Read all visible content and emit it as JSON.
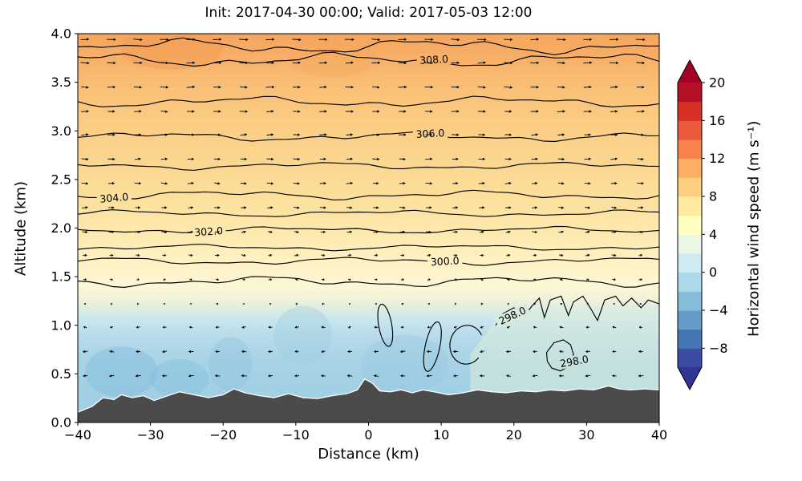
{
  "chart_data": {
    "type": "heatmap",
    "title": "Init: 2017-04-30 00:00; Valid: 2017-05-03 12:00",
    "xlabel": "Distance (km)",
    "ylabel": "Altitude (km)",
    "xlim": [
      -40,
      40
    ],
    "ylim": [
      0.0,
      4.0
    ],
    "x_ticks": [
      {
        "v": -40,
        "label": "−40"
      },
      {
        "v": -30,
        "label": "−30"
      },
      {
        "v": -20,
        "label": "−20"
      },
      {
        "v": -10,
        "label": "−10"
      },
      {
        "v": 0,
        "label": "0"
      },
      {
        "v": 10,
        "label": "10"
      },
      {
        "v": 20,
        "label": "20"
      },
      {
        "v": 30,
        "label": "30"
      },
      {
        "v": 40,
        "label": "40"
      }
    ],
    "y_ticks": [
      {
        "v": 0.0,
        "label": "0.0"
      },
      {
        "v": 0.5,
        "label": "0.5"
      },
      {
        "v": 1.0,
        "label": "1.0"
      },
      {
        "v": 1.5,
        "label": "1.5"
      },
      {
        "v": 2.0,
        "label": "2.0"
      },
      {
        "v": 2.5,
        "label": "2.5"
      },
      {
        "v": 3.0,
        "label": "3.0"
      },
      {
        "v": 3.5,
        "label": "3.5"
      },
      {
        "v": 4.0,
        "label": "4.0"
      }
    ],
    "colorbar": {
      "label": "Horizontal wind speed (m s⁻¹)",
      "vmin": -10,
      "vmax": 20,
      "band_step": 2,
      "ticks": [
        {
          "v": 20,
          "label": "20"
        },
        {
          "v": 16,
          "label": "16"
        },
        {
          "v": 12,
          "label": "12"
        },
        {
          "v": 8,
          "label": "8"
        },
        {
          "v": 4,
          "label": "4"
        },
        {
          "v": 0,
          "label": "0"
        },
        {
          "v": -4,
          "label": "−4"
        },
        {
          "v": -8,
          "label": "−8"
        }
      ],
      "band_colors": [
        "#3a4ca3",
        "#4575b4",
        "#649bc7",
        "#86bcd9",
        "#abd9e9",
        "#ceeaf3",
        "#eaf7e5",
        "#ffffbf",
        "#ffeaa0",
        "#fecf80",
        "#fdae61",
        "#f7824d",
        "#ea593a",
        "#d73027",
        "#b51026"
      ],
      "under_color": "#313695",
      "over_color": "#a50026"
    },
    "potential_temperature_contours": {
      "units": "K",
      "interval": 1.0,
      "lines": [
        {
          "theta": 309,
          "alt": 3.87,
          "amp": 0.05
        },
        {
          "theta": 308,
          "alt": 3.73,
          "amp": 0.045,
          "label": "308.0",
          "label_x": 9,
          "label_rot": -3
        },
        {
          "theta": 307,
          "alt": 3.3,
          "amp": 0.035
        },
        {
          "theta": 306,
          "alt": 2.94,
          "amp": 0.03,
          "label": "306.0",
          "label_x": 8.5,
          "label_rot": -3
        },
        {
          "theta": 305,
          "alt": 2.64,
          "amp": 0.025
        },
        {
          "theta": 304,
          "alt": 2.34,
          "amp": 0.03,
          "label": "304.0",
          "label_x": -35,
          "label_rot": -5
        },
        {
          "theta": 303,
          "alt": 2.15,
          "amp": 0.022
        },
        {
          "theta": 302,
          "alt": 1.98,
          "amp": 0.022,
          "label": "302.0",
          "label_x": -22,
          "label_rot": -4
        },
        {
          "theta": 301,
          "alt": 1.8,
          "amp": 0.02
        },
        {
          "theta": 300,
          "alt": 1.66,
          "amp": 0.025,
          "label": "300.0",
          "label_x": 10.5,
          "label_rot": -3
        },
        {
          "theta": 299,
          "alt": 1.45,
          "amp": 0.035
        }
      ],
      "theta298": {
        "label": "298.0",
        "main_line": [
          [
            17.5,
            1.0
          ],
          [
            18.5,
            1.12
          ],
          [
            20,
            1.18
          ],
          [
            21.5,
            1.1
          ],
          [
            22.5,
            1.2
          ],
          [
            23.5,
            1.28
          ],
          [
            24.2,
            1.08
          ],
          [
            25,
            1.26
          ],
          [
            26.5,
            1.3
          ],
          [
            27.5,
            1.1
          ],
          [
            28.2,
            1.24
          ],
          [
            29.5,
            1.3
          ],
          [
            30.5,
            1.18
          ],
          [
            31.5,
            1.05
          ],
          [
            32.5,
            1.26
          ],
          [
            34,
            1.3
          ],
          [
            35,
            1.2
          ],
          [
            36.2,
            1.28
          ],
          [
            37.5,
            1.18
          ],
          [
            38.5,
            1.26
          ],
          [
            40,
            1.22
          ]
        ],
        "labels": [
          {
            "x": 19.8,
            "alt": 1.1,
            "rot": -25,
            "bg": "#d7ebe1"
          },
          {
            "x": 28.3,
            "alt": 0.63,
            "rot": -10,
            "bg": "#c5e2df"
          }
        ],
        "loops": [
          {
            "cx": 2.3,
            "cy": 1.0,
            "rx": 0.9,
            "ry": 0.22,
            "rot": -10,
            "gap_deg": 0
          },
          {
            "cx": 8.8,
            "cy": 0.78,
            "rx": 1.0,
            "ry": 0.26,
            "rot": 12,
            "gap_deg": 0
          },
          {
            "cx": 13.5,
            "cy": 0.8,
            "rx": 2.3,
            "ry": 0.2,
            "rot": 8,
            "gap_deg": 70
          }
        ],
        "blob": [
          [
            24.5,
            0.72
          ],
          [
            25.5,
            0.82
          ],
          [
            26.8,
            0.85
          ],
          [
            27.8,
            0.8
          ],
          [
            28.2,
            0.7
          ],
          [
            27.6,
            0.58
          ],
          [
            26.4,
            0.53
          ],
          [
            25.2,
            0.56
          ],
          [
            24.6,
            0.63
          ],
          [
            24.5,
            0.72
          ]
        ]
      }
    },
    "fill_profile": [
      {
        "alt": 0.0,
        "color": "#a0cee3"
      },
      {
        "alt": 0.45,
        "color": "#a3d0e4"
      },
      {
        "alt": 0.7,
        "color": "#abd5e7"
      },
      {
        "alt": 0.9,
        "color": "#b8dcea"
      },
      {
        "alt": 1.05,
        "color": "#c8e6ee"
      },
      {
        "alt": 1.18,
        "color": "#dfeee0"
      },
      {
        "alt": 1.28,
        "color": "#f2f3d8"
      },
      {
        "alt": 1.4,
        "color": "#fdf6d6"
      },
      {
        "alt": 1.55,
        "color": "#fef4cb"
      },
      {
        "alt": 1.75,
        "color": "#feefbc"
      },
      {
        "alt": 2.0,
        "color": "#fde8ab"
      },
      {
        "alt": 2.3,
        "color": "#fce09c"
      },
      {
        "alt": 2.7,
        "color": "#fbd68e"
      },
      {
        "alt": 3.1,
        "color": "#fbcc83"
      },
      {
        "alt": 3.5,
        "color": "#f9bd74"
      },
      {
        "alt": 3.8,
        "color": "#f7ad66"
      },
      {
        "alt": 4.0,
        "color": "#f5a55c"
      }
    ],
    "shading": [
      {
        "shape": "polygon",
        "pts": [
          [
            14,
            0.3
          ],
          [
            40,
            0.3
          ],
          [
            40,
            1.18
          ],
          [
            30,
            1.12
          ],
          [
            22,
            1.15
          ],
          [
            17,
            1.0
          ],
          [
            14,
            0.7
          ]
        ],
        "color": "#dcedda",
        "opacity": 0.55
      },
      {
        "shape": "ellipse",
        "cx": -34,
        "cy": 0.52,
        "rx": 5,
        "ry": 0.26,
        "color": "#86bedd",
        "opacity": 0.5
      },
      {
        "shape": "ellipse",
        "cx": -26,
        "cy": 0.45,
        "rx": 4,
        "ry": 0.2,
        "color": "#86bedd",
        "opacity": 0.45
      },
      {
        "shape": "ellipse",
        "cx": -19,
        "cy": 0.6,
        "rx": 3,
        "ry": 0.28,
        "color": "#8fc3de",
        "opacity": 0.4
      },
      {
        "shape": "ellipse",
        "cx": 5,
        "cy": 0.6,
        "rx": 6,
        "ry": 0.3,
        "color": "#97c8e0",
        "opacity": 0.4
      },
      {
        "shape": "ellipse",
        "cx": -9,
        "cy": 0.9,
        "rx": 4,
        "ry": 0.3,
        "color": "#9ccbe2",
        "opacity": 0.35
      },
      {
        "shape": "ellipse",
        "cx": -27,
        "cy": 3.85,
        "rx": 7,
        "ry": 0.22,
        "color": "#f2994d",
        "opacity": 0.4
      },
      {
        "shape": "ellipse",
        "cx": -5,
        "cy": 3.75,
        "rx": 6,
        "ry": 0.2,
        "color": "#f6a75c",
        "opacity": 0.35
      },
      {
        "shape": "ellipse",
        "cx": 25,
        "cy": 3.9,
        "rx": 8,
        "ry": 0.18,
        "color": "#f6ab60",
        "opacity": 0.3
      }
    ],
    "terrain": [
      [
        -40,
        0.1
      ],
      [
        -38,
        0.16
      ],
      [
        -36.5,
        0.25
      ],
      [
        -35,
        0.23
      ],
      [
        -34,
        0.28
      ],
      [
        -32.5,
        0.25
      ],
      [
        -31,
        0.27
      ],
      [
        -29.5,
        0.22
      ],
      [
        -28,
        0.26
      ],
      [
        -26,
        0.31
      ],
      [
        -24,
        0.28
      ],
      [
        -22,
        0.25
      ],
      [
        -20,
        0.28
      ],
      [
        -18.5,
        0.34
      ],
      [
        -17,
        0.3
      ],
      [
        -15,
        0.27
      ],
      [
        -13,
        0.25
      ],
      [
        -11,
        0.29
      ],
      [
        -9,
        0.25
      ],
      [
        -7,
        0.24
      ],
      [
        -5,
        0.27
      ],
      [
        -3,
        0.29
      ],
      [
        -1.5,
        0.33
      ],
      [
        -0.5,
        0.44
      ],
      [
        0.5,
        0.4
      ],
      [
        1.5,
        0.32
      ],
      [
        3,
        0.31
      ],
      [
        4.5,
        0.33
      ],
      [
        6,
        0.3
      ],
      [
        7.5,
        0.33
      ],
      [
        9,
        0.31
      ],
      [
        11,
        0.28
      ],
      [
        13,
        0.3
      ],
      [
        15,
        0.33
      ],
      [
        17,
        0.31
      ],
      [
        19,
        0.3
      ],
      [
        21,
        0.32
      ],
      [
        23,
        0.31
      ],
      [
        25,
        0.33
      ],
      [
        27,
        0.32
      ],
      [
        29,
        0.34
      ],
      [
        31,
        0.33
      ],
      [
        33,
        0.37
      ],
      [
        34.5,
        0.34
      ],
      [
        36,
        0.33
      ],
      [
        38,
        0.34
      ],
      [
        40,
        0.33
      ]
    ],
    "wind_profile": [
      [
        0.0,
        -3.6
      ],
      [
        0.45,
        -3.4
      ],
      [
        0.75,
        -2.9
      ],
      [
        1.0,
        -2.1
      ],
      [
        1.15,
        -1.1
      ],
      [
        1.3,
        0.2
      ],
      [
        1.45,
        1.3
      ],
      [
        1.6,
        2.2
      ],
      [
        1.8,
        3.0
      ],
      [
        2.1,
        3.8
      ],
      [
        2.5,
        4.6
      ],
      [
        3.0,
        5.4
      ],
      [
        3.5,
        6.2
      ],
      [
        4.0,
        7.0
      ]
    ],
    "arrows": {
      "x_start": -39,
      "x_step": 3.64,
      "alts": [
        0.48,
        0.73,
        0.98,
        1.22,
        1.47,
        1.72,
        1.96,
        2.21,
        2.46,
        2.71,
        2.96,
        3.2,
        3.45,
        3.7,
        3.94
      ]
    }
  }
}
